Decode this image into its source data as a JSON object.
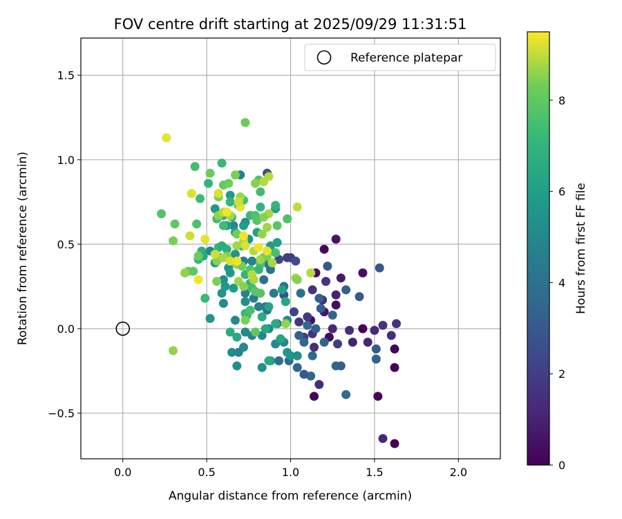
{
  "chart_data": {
    "type": "scatter",
    "title": "FOV centre drift starting at 2025/09/29 11:31:51",
    "xlabel": "Angular distance from reference (arcmin)",
    "ylabel": "Rotation from reference (arcmin)",
    "xlim": [
      -0.25,
      2.25
    ],
    "ylim": [
      -0.77,
      1.72
    ],
    "xticks": [
      0.0,
      0.5,
      1.0,
      1.5,
      2.0
    ],
    "xtick_labels": [
      "0.0",
      "0.5",
      "1.0",
      "1.5",
      "2.0"
    ],
    "yticks": [
      -0.5,
      0.0,
      0.5,
      1.0,
      1.5
    ],
    "ytick_labels": [
      "−0.5",
      "0.0",
      "0.5",
      "1.0",
      "1.5"
    ],
    "grid": true,
    "legend": {
      "location": "top-right",
      "entries": [
        "Reference platepar"
      ]
    },
    "reference_point": {
      "x": 0.0,
      "y": 0.0,
      "label": "Reference platepar"
    },
    "colorbar": {
      "label": "Hours from first FF file",
      "min": 0,
      "max": 9.5,
      "ticks": [
        0,
        2,
        4,
        6,
        8
      ],
      "tick_labels": [
        "0",
        "2",
        "4",
        "6",
        "8"
      ],
      "colormap": "viridis"
    },
    "points": [
      [
        1.62,
        -0.68,
        0.0
      ],
      [
        1.62,
        -0.23,
        0.1
      ],
      [
        1.62,
        -0.12,
        0.1
      ],
      [
        1.52,
        -0.4,
        0.1
      ],
      [
        1.14,
        -0.4,
        0.1
      ],
      [
        1.43,
        0.0,
        0.0
      ],
      [
        1.2,
        0.47,
        0.2
      ],
      [
        1.27,
        0.53,
        0.6
      ],
      [
        1.43,
        0.33,
        0.5
      ],
      [
        1.15,
        0.33,
        0.4
      ],
      [
        1.12,
        0.05,
        0.3
      ],
      [
        1.2,
        0.1,
        0.6
      ],
      [
        1.27,
        0.14,
        0.4
      ],
      [
        1.23,
        -0.05,
        0.3
      ],
      [
        1.3,
        0.3,
        0.8
      ],
      [
        1.55,
        -0.65,
        1.2
      ],
      [
        1.6,
        -0.04,
        1.4
      ],
      [
        1.63,
        0.03,
        1.5
      ],
      [
        1.55,
        0.02,
        1.6
      ],
      [
        1.5,
        -0.01,
        1.3
      ],
      [
        1.46,
        -0.08,
        1.1
      ],
      [
        1.37,
        -0.08,
        1.0
      ],
      [
        1.35,
        -0.01,
        1.4
      ],
      [
        1.27,
        0.2,
        1.0
      ],
      [
        1.25,
        0.0,
        1.2
      ],
      [
        1.19,
        0.17,
        1.5
      ],
      [
        1.21,
        0.28,
        1.6
      ],
      [
        1.17,
        -0.33,
        1.4
      ],
      [
        1.14,
        -0.11,
        1.5
      ],
      [
        1.1,
        0.07,
        1.8
      ],
      [
        1.08,
        -0.05,
        1.9
      ],
      [
        1.13,
        0.23,
        1.6
      ],
      [
        1.05,
        0.04,
        1.7
      ],
      [
        1.13,
        -0.03,
        1.6
      ],
      [
        1.28,
        -0.09,
        1.9
      ],
      [
        1.0,
        0.42,
        1.8
      ],
      [
        0.98,
        0.42,
        2.0
      ],
      [
        0.93,
        0.41,
        2.2
      ],
      [
        1.03,
        0.4,
        2.5
      ],
      [
        0.96,
        0.2,
        2.6
      ],
      [
        1.02,
        0.1,
        2.2
      ],
      [
        0.86,
        0.92,
        2.7
      ],
      [
        1.53,
        0.36,
        2.9
      ],
      [
        1.41,
        0.19,
        3.0
      ],
      [
        1.33,
        0.23,
        3.3
      ],
      [
        1.22,
        0.37,
        3.0
      ],
      [
        1.17,
        0.18,
        3.3
      ],
      [
        1.18,
        0.12,
        3.1
      ],
      [
        1.25,
        0.08,
        3.5
      ],
      [
        1.15,
        0.0,
        3.2
      ],
      [
        1.1,
        0.02,
        3.6
      ],
      [
        1.05,
        -0.04,
        3.4
      ],
      [
        1.08,
        -0.08,
        3.6
      ],
      [
        1.2,
        -0.08,
        3.4
      ],
      [
        1.27,
        -0.22,
        3.6
      ],
      [
        1.3,
        -0.22,
        3.2
      ],
      [
        1.33,
        -0.39,
        3.7
      ],
      [
        1.51,
        -0.18,
        3.3
      ],
      [
        1.51,
        -0.12,
        3.0
      ],
      [
        1.12,
        -0.28,
        3.5
      ],
      [
        1.08,
        -0.27,
        3.0
      ],
      [
        1.04,
        -0.23,
        3.5
      ],
      [
        1.13,
        -0.16,
        3.7
      ],
      [
        0.99,
        -0.19,
        3.7
      ],
      [
        0.93,
        -0.19,
        3.9
      ],
      [
        1.06,
        0.21,
        3.8
      ],
      [
        0.96,
        0.25,
        4.0
      ],
      [
        0.88,
        0.35,
        4.2
      ],
      [
        0.92,
        0.03,
        3.9
      ],
      [
        0.86,
        0.11,
        4.1
      ],
      [
        0.84,
        0.29,
        4.0
      ],
      [
        0.87,
        0.38,
        4.3
      ],
      [
        0.9,
        0.21,
        4.4
      ],
      [
        0.85,
        0.13,
        4.2
      ],
      [
        0.81,
        0.13,
        4.5
      ],
      [
        0.78,
        0.18,
        4.6
      ],
      [
        0.77,
        0.4,
        4.7
      ],
      [
        0.72,
        0.4,
        4.5
      ],
      [
        0.73,
        0.21,
        4.8
      ],
      [
        0.7,
        0.91,
        4.6
      ],
      [
        0.77,
        -0.04,
        4.8
      ],
      [
        0.73,
        -0.02,
        5.0
      ],
      [
        0.83,
        -0.04,
        5.0
      ],
      [
        0.91,
        -0.09,
        5.1
      ],
      [
        0.96,
        -0.08,
        4.9
      ],
      [
        0.87,
        0.0,
        4.9
      ],
      [
        0.67,
        0.05,
        5.0
      ],
      [
        0.69,
        -0.14,
        4.8
      ],
      [
        0.65,
        -0.14,
        5.2
      ],
      [
        0.72,
        -0.11,
        5.0
      ],
      [
        0.68,
        -0.22,
        5.3
      ],
      [
        0.83,
        -0.23,
        5.4
      ],
      [
        0.88,
        -0.19,
        5.3
      ],
      [
        0.98,
        0.05,
        5.2
      ],
      [
        0.98,
        -0.14,
        5.5
      ],
      [
        1.0,
        -0.16,
        5.6
      ],
      [
        1.04,
        -0.16,
        5.4
      ],
      [
        0.73,
        0.16,
        5.3
      ],
      [
        0.6,
        0.15,
        5.1
      ],
      [
        0.59,
        0.21,
        5.5
      ],
      [
        0.6,
        0.29,
        5.2
      ],
      [
        0.61,
        0.25,
        5.7
      ],
      [
        0.63,
        0.36,
        5.4
      ],
      [
        0.55,
        0.39,
        5.3
      ],
      [
        0.52,
        0.46,
        5.0
      ],
      [
        0.55,
        0.39,
        5.6
      ],
      [
        0.52,
        0.06,
        5.5
      ],
      [
        0.64,
        0.33,
        5.8
      ],
      [
        0.66,
        0.24,
        5.9
      ],
      [
        0.66,
        0.61,
        5.0
      ],
      [
        0.73,
        0.63,
        5.2
      ],
      [
        0.75,
        0.53,
        5.6
      ],
      [
        0.67,
        0.44,
        5.5
      ],
      [
        0.71,
        0.49,
        5.8
      ],
      [
        0.72,
        0.61,
        6.0
      ],
      [
        0.55,
        0.71,
        5.7
      ],
      [
        0.62,
        0.61,
        5.9
      ],
      [
        0.64,
        0.79,
        5.8
      ],
      [
        0.67,
        0.57,
        6.1
      ],
      [
        0.8,
        0.57,
        6.2
      ],
      [
        0.88,
        0.49,
        6.0
      ],
      [
        0.91,
        0.71,
        5.9
      ],
      [
        0.92,
        0.51,
        6.1
      ],
      [
        0.95,
        0.23,
        6.1
      ],
      [
        0.97,
        0.16,
        6.3
      ],
      [
        0.87,
        0.13,
        6.2
      ],
      [
        0.85,
        0.0,
        6.4
      ],
      [
        0.91,
        0.03,
        6.5
      ],
      [
        0.94,
        -0.06,
        6.3
      ],
      [
        0.87,
        -0.19,
        6.5
      ],
      [
        0.64,
        -0.02,
        6.6
      ],
      [
        0.68,
        -0.05,
        6.4
      ],
      [
        0.83,
        0.07,
        6.6
      ],
      [
        0.73,
        0.09,
        7.0
      ],
      [
        0.74,
        0.08,
        7.3
      ],
      [
        0.76,
        0.27,
        6.8
      ],
      [
        0.73,
        0.32,
        7.0
      ],
      [
        0.62,
        0.47,
        6.7
      ],
      [
        0.58,
        0.42,
        7.2
      ],
      [
        0.57,
        0.48,
        6.9
      ],
      [
        0.59,
        0.49,
        6.6
      ],
      [
        0.47,
        0.46,
        6.8
      ],
      [
        0.48,
        0.43,
        6.5
      ],
      [
        0.45,
        0.41,
        7.1
      ],
      [
        0.49,
        0.18,
        7.2
      ],
      [
        0.56,
        0.65,
        7.4
      ],
      [
        0.6,
        0.67,
        7.0
      ],
      [
        0.6,
        0.61,
        7.3
      ],
      [
        0.65,
        0.66,
        7.2
      ],
      [
        0.64,
        0.75,
        7.1
      ],
      [
        0.69,
        0.73,
        6.9
      ],
      [
        0.72,
        0.76,
        7.5
      ],
      [
        0.76,
        0.67,
        7.3
      ],
      [
        0.79,
        0.67,
        7.6
      ],
      [
        0.82,
        0.81,
        7.4
      ],
      [
        0.81,
        0.88,
        7.7
      ],
      [
        0.82,
        0.72,
        7.0
      ],
      [
        0.8,
        0.64,
        7.8
      ],
      [
        0.91,
        0.73,
        7.1
      ],
      [
        0.92,
        0.61,
        7.9
      ],
      [
        0.98,
        0.65,
        7.6
      ],
      [
        0.91,
        0.45,
        7.5
      ],
      [
        0.84,
        0.42,
        7.3
      ],
      [
        0.82,
        0.38,
        7.6
      ],
      [
        0.81,
        0.35,
        7.1
      ],
      [
        0.76,
        0.35,
        7.7
      ],
      [
        0.77,
        0.24,
        7.4
      ],
      [
        0.82,
        0.21,
        7.8
      ],
      [
        0.79,
        0.22,
        7.9
      ],
      [
        0.76,
        0.11,
        7.5
      ],
      [
        0.79,
        -0.02,
        8.0
      ],
      [
        0.59,
        0.98,
        7.2
      ],
      [
        0.51,
        0.86,
        7.0
      ],
      [
        0.43,
        0.96,
        7.4
      ],
      [
        0.46,
        0.77,
        7.3
      ],
      [
        0.44,
        0.62,
        7.6
      ],
      [
        0.52,
        0.92,
        8.2
      ],
      [
        0.6,
        0.85,
        8.1
      ],
      [
        0.63,
        0.86,
        8.3
      ],
      [
        0.67,
        0.91,
        8.4
      ],
      [
        0.73,
        1.22,
        8.2
      ],
      [
        0.23,
        0.68,
        7.7
      ],
      [
        0.31,
        0.62,
        8.0
      ],
      [
        0.3,
        0.52,
        8.4
      ],
      [
        0.39,
        0.34,
        8.3
      ],
      [
        0.37,
        0.33,
        8.6
      ],
      [
        0.42,
        0.34,
        8.0
      ],
      [
        0.45,
        0.43,
        8.2
      ],
      [
        0.56,
        0.4,
        8.5
      ],
      [
        0.62,
        0.43,
        8.4
      ],
      [
        0.6,
        0.42,
        8.8
      ],
      [
        0.68,
        0.38,
        8.6
      ],
      [
        0.71,
        0.37,
        8.3
      ],
      [
        0.69,
        0.28,
        8.7
      ],
      [
        0.72,
        0.25,
        8.5
      ],
      [
        0.78,
        0.29,
        8.8
      ],
      [
        0.77,
        0.32,
        8.9
      ],
      [
        0.82,
        0.41,
        8.7
      ],
      [
        0.86,
        0.43,
        8.4
      ],
      [
        0.89,
        0.39,
        8.8
      ],
      [
        0.73,
        0.05,
        8.4
      ],
      [
        0.78,
        0.46,
        8.9
      ],
      [
        0.83,
        0.56,
        8.6
      ],
      [
        0.86,
        0.6,
        8.7
      ],
      [
        0.87,
        0.68,
        8.8
      ],
      [
        0.84,
        0.66,
        8.5
      ],
      [
        0.68,
        0.56,
        8.3
      ],
      [
        0.68,
        0.49,
        8.7
      ],
      [
        0.72,
        0.52,
        8.9
      ],
      [
        0.7,
        0.78,
        8.7
      ],
      [
        0.79,
        0.86,
        8.5
      ],
      [
        0.84,
        0.87,
        8.9
      ],
      [
        0.87,
        0.9,
        8.9
      ],
      [
        0.57,
        0.67,
        8.6
      ],
      [
        0.57,
        0.78,
        8.4
      ],
      [
        0.6,
        0.69,
        8.9
      ],
      [
        0.64,
        0.67,
        8.8
      ],
      [
        0.56,
        0.28,
        8.4
      ],
      [
        0.3,
        -0.13,
        8.6
      ],
      [
        0.97,
        0.03,
        8.6
      ],
      [
        1.03,
        0.3,
        8.8
      ],
      [
        1.04,
        0.29,
        8.5
      ],
      [
        1.12,
        0.33,
        8.9
      ],
      [
        1.04,
        0.72,
        9.0
      ],
      [
        0.26,
        1.13,
        9.3
      ],
      [
        0.41,
        0.8,
        9.2
      ],
      [
        0.49,
        0.53,
        9.3
      ],
      [
        0.4,
        0.55,
        9.1
      ],
      [
        0.45,
        0.29,
        9.4
      ],
      [
        0.57,
        0.8,
        9.2
      ],
      [
        0.62,
        0.69,
        9.4
      ],
      [
        0.7,
        0.72,
        9.3
      ],
      [
        0.69,
        0.75,
        9.1
      ],
      [
        0.72,
        0.55,
        9.4
      ],
      [
        0.73,
        0.49,
        9.2
      ],
      [
        0.81,
        0.48,
        9.4
      ],
      [
        0.86,
        0.46,
        9.3
      ],
      [
        0.64,
        0.4,
        9.2
      ],
      [
        0.68,
        0.4,
        9.4
      ],
      [
        0.55,
        0.44,
        9.1
      ]
    ]
  }
}
